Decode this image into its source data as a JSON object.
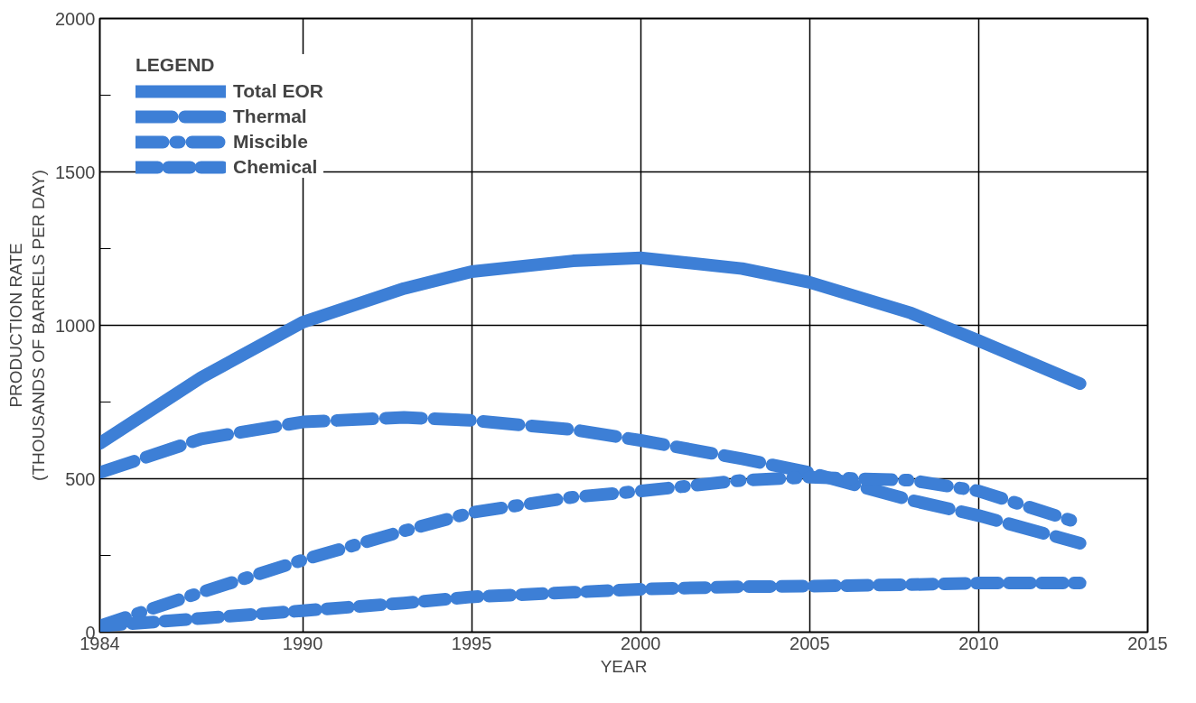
{
  "chart_data": {
    "type": "line",
    "xlabel": "YEAR",
    "ylabel": "PRODUCTION RATE\n(THOUSANDS OF BARRELS PER DAY)",
    "legend_title": "LEGEND",
    "xlim": [
      1984,
      2015
    ],
    "ylim": [
      0,
      2000
    ],
    "xticks": [
      1984,
      1990,
      1995,
      2000,
      2005,
      2010,
      2015
    ],
    "yticks": [
      0,
      {
        "value": 250,
        "label": null
      },
      500,
      {
        "value": 750,
        "label": null
      },
      1000,
      {
        "value": 1250,
        "label": null
      },
      1500,
      {
        "value": 1750,
        "label": null
      },
      2000
    ],
    "grid": true,
    "legend": "top left",
    "series": [
      {
        "name": "Total EOR",
        "color": "#3d7fd6",
        "line_style": "solid",
        "x": [
          1984,
          1987,
          1990,
          1993,
          1995,
          1998,
          2000,
          2003,
          2005,
          2008,
          2010,
          2013
        ],
        "values": [
          615,
          830,
          1010,
          1120,
          1175,
          1210,
          1220,
          1185,
          1140,
          1040,
          950,
          810
        ]
      },
      {
        "name": "Thermal",
        "color": "#3d7fd6",
        "line_style": "dashed",
        "x": [
          1984,
          1987,
          1990,
          1993,
          1995,
          1998,
          2000,
          2003,
          2005,
          2008,
          2010,
          2013
        ],
        "values": [
          520,
          630,
          685,
          700,
          690,
          660,
          625,
          565,
          520,
          430,
          380,
          290
        ]
      },
      {
        "name": "Miscible",
        "color": "#3d7fd6",
        "line_style": "dashdot",
        "x": [
          1984,
          1987,
          1990,
          1993,
          1995,
          1998,
          2000,
          2003,
          2005,
          2008,
          2010,
          2013
        ],
        "values": [
          20,
          130,
          235,
          330,
          390,
          440,
          460,
          495,
          505,
          495,
          460,
          355
        ]
      },
      {
        "name": "Chemical",
        "color": "#3d7fd6",
        "line_style": "dashed",
        "x": [
          1984,
          1987,
          1990,
          1993,
          1995,
          1998,
          2000,
          2003,
          2005,
          2008,
          2010,
          2013
        ],
        "values": [
          20,
          45,
          70,
          95,
          115,
          130,
          140,
          148,
          150,
          155,
          160,
          160
        ]
      }
    ]
  }
}
